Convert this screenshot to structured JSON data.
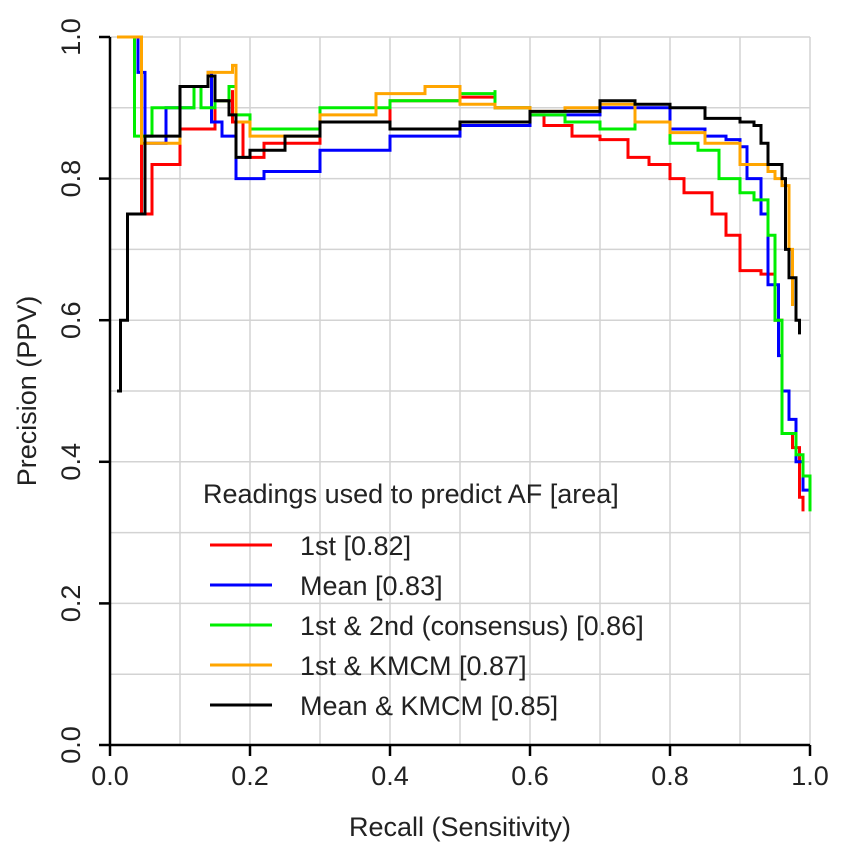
{
  "chart_data": {
    "type": "line",
    "title": "",
    "xlabel": "Recall (Sensitivity)",
    "ylabel": "Precision (PPV)",
    "xlim": [
      0,
      1
    ],
    "ylim": [
      0,
      1
    ],
    "x_ticks": [
      0.0,
      0.2,
      0.4,
      0.6,
      0.8,
      1.0
    ],
    "y_ticks": [
      0.0,
      0.2,
      0.4,
      0.6,
      0.8,
      1.0
    ],
    "x_tick_labels": [
      "0.0",
      "0.2",
      "0.4",
      "0.6",
      "0.8",
      "1.0"
    ],
    "y_tick_labels": [
      "0.0",
      "0.2",
      "0.4",
      "0.6",
      "0.8",
      "1.0"
    ],
    "grid_step": 0.1,
    "grid": true,
    "legend_title": "Readings used to predict AF [area]",
    "legend_position": "bottom-left",
    "series": [
      {
        "name": "1st [0.82]",
        "color": "#ff0000",
        "points": [
          [
            0.01,
            1.0
          ],
          [
            0.045,
            1.0
          ],
          [
            0.045,
            0.75
          ],
          [
            0.06,
            0.82
          ],
          [
            0.1,
            0.87
          ],
          [
            0.15,
            0.91
          ],
          [
            0.175,
            0.925
          ],
          [
            0.175,
            0.88
          ],
          [
            0.19,
            0.83
          ],
          [
            0.22,
            0.85
          ],
          [
            0.3,
            0.88
          ],
          [
            0.4,
            0.91
          ],
          [
            0.5,
            0.915
          ],
          [
            0.55,
            0.9
          ],
          [
            0.6,
            0.89
          ],
          [
            0.62,
            0.875
          ],
          [
            0.66,
            0.86
          ],
          [
            0.7,
            0.855
          ],
          [
            0.74,
            0.83
          ],
          [
            0.77,
            0.82
          ],
          [
            0.8,
            0.8
          ],
          [
            0.82,
            0.78
          ],
          [
            0.86,
            0.75
          ],
          [
            0.88,
            0.72
          ],
          [
            0.9,
            0.67
          ],
          [
            0.93,
            0.665
          ],
          [
            0.95,
            0.6
          ],
          [
            0.96,
            0.44
          ],
          [
            0.975,
            0.42
          ],
          [
            0.985,
            0.35
          ],
          [
            0.99,
            0.33
          ]
        ]
      },
      {
        "name": "Mean [0.83]",
        "color": "#0000ff",
        "points": [
          [
            0.01,
            1.0
          ],
          [
            0.04,
            0.95
          ],
          [
            0.05,
            0.85
          ],
          [
            0.08,
            0.9
          ],
          [
            0.12,
            0.93
          ],
          [
            0.14,
            0.95
          ],
          [
            0.145,
            0.88
          ],
          [
            0.16,
            0.86
          ],
          [
            0.18,
            0.8
          ],
          [
            0.22,
            0.81
          ],
          [
            0.3,
            0.84
          ],
          [
            0.4,
            0.86
          ],
          [
            0.5,
            0.875
          ],
          [
            0.6,
            0.89
          ],
          [
            0.7,
            0.9
          ],
          [
            0.8,
            0.87
          ],
          [
            0.85,
            0.86
          ],
          [
            0.88,
            0.855
          ],
          [
            0.9,
            0.845
          ],
          [
            0.91,
            0.8
          ],
          [
            0.93,
            0.75
          ],
          [
            0.94,
            0.65
          ],
          [
            0.955,
            0.55
          ],
          [
            0.96,
            0.5
          ],
          [
            0.97,
            0.46
          ],
          [
            0.98,
            0.4
          ],
          [
            0.99,
            0.36
          ],
          [
            1.0,
            0.35
          ]
        ]
      },
      {
        "name": "1st & 2nd (consensus) [0.86]",
        "color": "#00ee00",
        "points": [
          [
            0.01,
            1.0
          ],
          [
            0.035,
            1.0
          ],
          [
            0.035,
            0.86
          ],
          [
            0.06,
            0.9
          ],
          [
            0.12,
            0.93
          ],
          [
            0.13,
            0.9
          ],
          [
            0.15,
            0.91
          ],
          [
            0.17,
            0.93
          ],
          [
            0.18,
            0.89
          ],
          [
            0.2,
            0.87
          ],
          [
            0.3,
            0.9
          ],
          [
            0.4,
            0.91
          ],
          [
            0.5,
            0.92
          ],
          [
            0.55,
            0.925
          ],
          [
            0.55,
            0.9
          ],
          [
            0.6,
            0.89
          ],
          [
            0.65,
            0.88
          ],
          [
            0.7,
            0.87
          ],
          [
            0.75,
            0.88
          ],
          [
            0.8,
            0.85
          ],
          [
            0.84,
            0.84
          ],
          [
            0.87,
            0.8
          ],
          [
            0.9,
            0.78
          ],
          [
            0.92,
            0.77
          ],
          [
            0.94,
            0.72
          ],
          [
            0.95,
            0.6
          ],
          [
            0.96,
            0.44
          ],
          [
            0.98,
            0.41
          ],
          [
            0.99,
            0.38
          ],
          [
            1.0,
            0.33
          ]
        ]
      },
      {
        "name": "1st & KMCM [0.87]",
        "color": "#ffa500",
        "points": [
          [
            0.01,
            1.0
          ],
          [
            0.045,
            1.0
          ],
          [
            0.045,
            0.85
          ],
          [
            0.1,
            0.93
          ],
          [
            0.14,
            0.95
          ],
          [
            0.175,
            0.96
          ],
          [
            0.18,
            0.88
          ],
          [
            0.2,
            0.86
          ],
          [
            0.3,
            0.89
          ],
          [
            0.38,
            0.92
          ],
          [
            0.45,
            0.93
          ],
          [
            0.49,
            0.93
          ],
          [
            0.5,
            0.905
          ],
          [
            0.55,
            0.9
          ],
          [
            0.6,
            0.895
          ],
          [
            0.65,
            0.9
          ],
          [
            0.7,
            0.905
          ],
          [
            0.75,
            0.88
          ],
          [
            0.8,
            0.865
          ],
          [
            0.85,
            0.85
          ],
          [
            0.9,
            0.82
          ],
          [
            0.94,
            0.81
          ],
          [
            0.95,
            0.8
          ],
          [
            0.96,
            0.79
          ],
          [
            0.97,
            0.7
          ],
          [
            0.975,
            0.62
          ]
        ]
      },
      {
        "name": "Mean & KMCM [0.85]",
        "color": "#000000",
        "points": [
          [
            0.01,
            0.5
          ],
          [
            0.015,
            0.6
          ],
          [
            0.025,
            0.75
          ],
          [
            0.05,
            0.86
          ],
          [
            0.1,
            0.93
          ],
          [
            0.14,
            0.945
          ],
          [
            0.15,
            0.91
          ],
          [
            0.17,
            0.89
          ],
          [
            0.18,
            0.83
          ],
          [
            0.2,
            0.84
          ],
          [
            0.25,
            0.86
          ],
          [
            0.3,
            0.88
          ],
          [
            0.4,
            0.87
          ],
          [
            0.5,
            0.88
          ],
          [
            0.6,
            0.895
          ],
          [
            0.7,
            0.91
          ],
          [
            0.75,
            0.905
          ],
          [
            0.8,
            0.9
          ],
          [
            0.85,
            0.885
          ],
          [
            0.9,
            0.88
          ],
          [
            0.92,
            0.875
          ],
          [
            0.93,
            0.85
          ],
          [
            0.94,
            0.82
          ],
          [
            0.96,
            0.8
          ],
          [
            0.965,
            0.7
          ],
          [
            0.97,
            0.66
          ],
          [
            0.98,
            0.6
          ],
          [
            0.985,
            0.58
          ]
        ]
      }
    ]
  }
}
